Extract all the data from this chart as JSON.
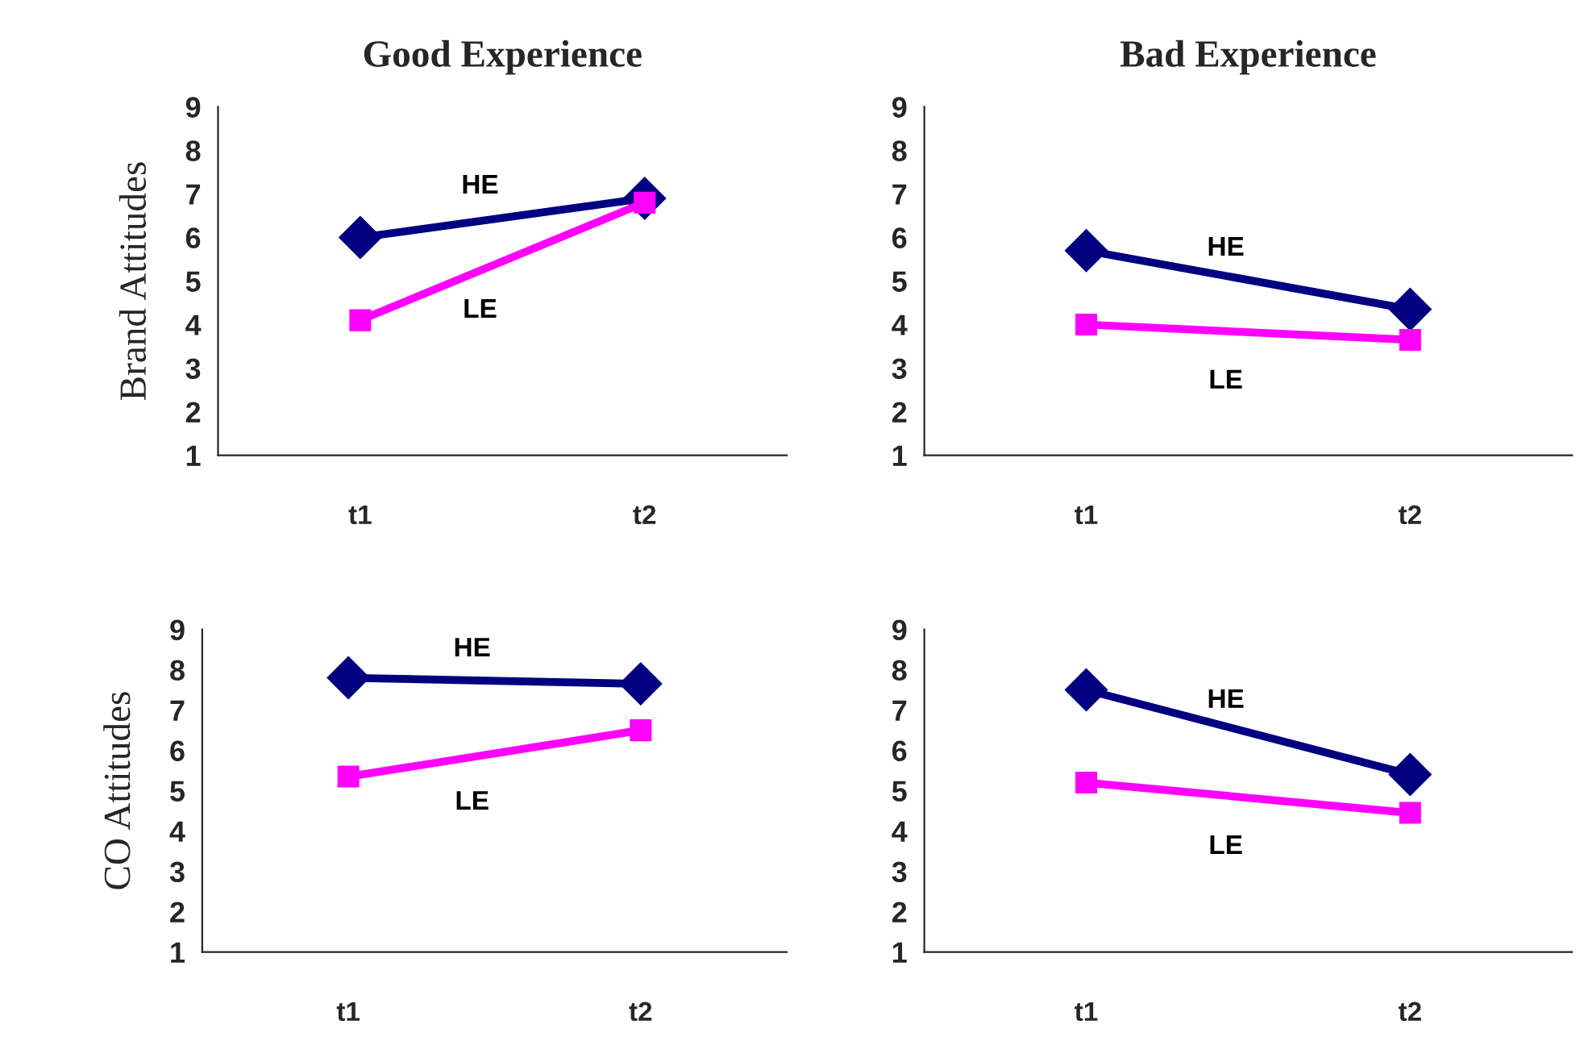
{
  "chart_data": [
    {
      "type": "line",
      "title": "Good Experience",
      "ylabel": "Brand Attitudes",
      "categories": [
        "t1",
        "t2"
      ],
      "ylim": [
        1,
        9
      ],
      "yticks": [
        1,
        2,
        3,
        4,
        5,
        6,
        7,
        8,
        9
      ],
      "grid": false,
      "legend": false,
      "series": [
        {
          "name": "HE",
          "color": "#000080",
          "values": [
            6.0,
            6.9
          ],
          "marker": "diamond"
        },
        {
          "name": "LE",
          "color": "#ff00ff",
          "values": [
            4.1,
            6.8
          ],
          "marker": "square"
        }
      ]
    },
    {
      "type": "line",
      "title": "Bad Experience",
      "categories": [
        "t1",
        "t2"
      ],
      "ylim": [
        1,
        9
      ],
      "yticks": [
        1,
        2,
        3,
        4,
        5,
        6,
        7,
        8,
        9
      ],
      "grid": false,
      "legend": false,
      "series": [
        {
          "name": "HE",
          "color": "#000080",
          "values": [
            5.7,
            4.35
          ],
          "marker": "diamond"
        },
        {
          "name": "LE",
          "color": "#ff00ff",
          "values": [
            4.0,
            3.65
          ],
          "marker": "square"
        }
      ]
    },
    {
      "type": "line",
      "ylabel": "CO Attitudes",
      "categories": [
        "t1",
        "t2"
      ],
      "ylim": [
        1,
        9
      ],
      "yticks": [
        1,
        2,
        3,
        4,
        5,
        6,
        7,
        8,
        9
      ],
      "grid": false,
      "legend": false,
      "series": [
        {
          "name": "HE",
          "color": "#000080",
          "values": [
            7.8,
            7.65
          ],
          "marker": "diamond"
        },
        {
          "name": "LE",
          "color": "#ff00ff",
          "values": [
            5.35,
            6.5
          ],
          "marker": "square"
        }
      ]
    },
    {
      "type": "line",
      "categories": [
        "t1",
        "t2"
      ],
      "ylim": [
        1,
        9
      ],
      "yticks": [
        1,
        2,
        3,
        4,
        5,
        6,
        7,
        8,
        9
      ],
      "grid": false,
      "legend": false,
      "series": [
        {
          "name": "HE",
          "color": "#000080",
          "values": [
            7.5,
            5.4
          ],
          "marker": "diamond"
        },
        {
          "name": "LE",
          "color": "#ff00ff",
          "values": [
            5.2,
            4.45
          ],
          "marker": "square"
        }
      ]
    }
  ]
}
